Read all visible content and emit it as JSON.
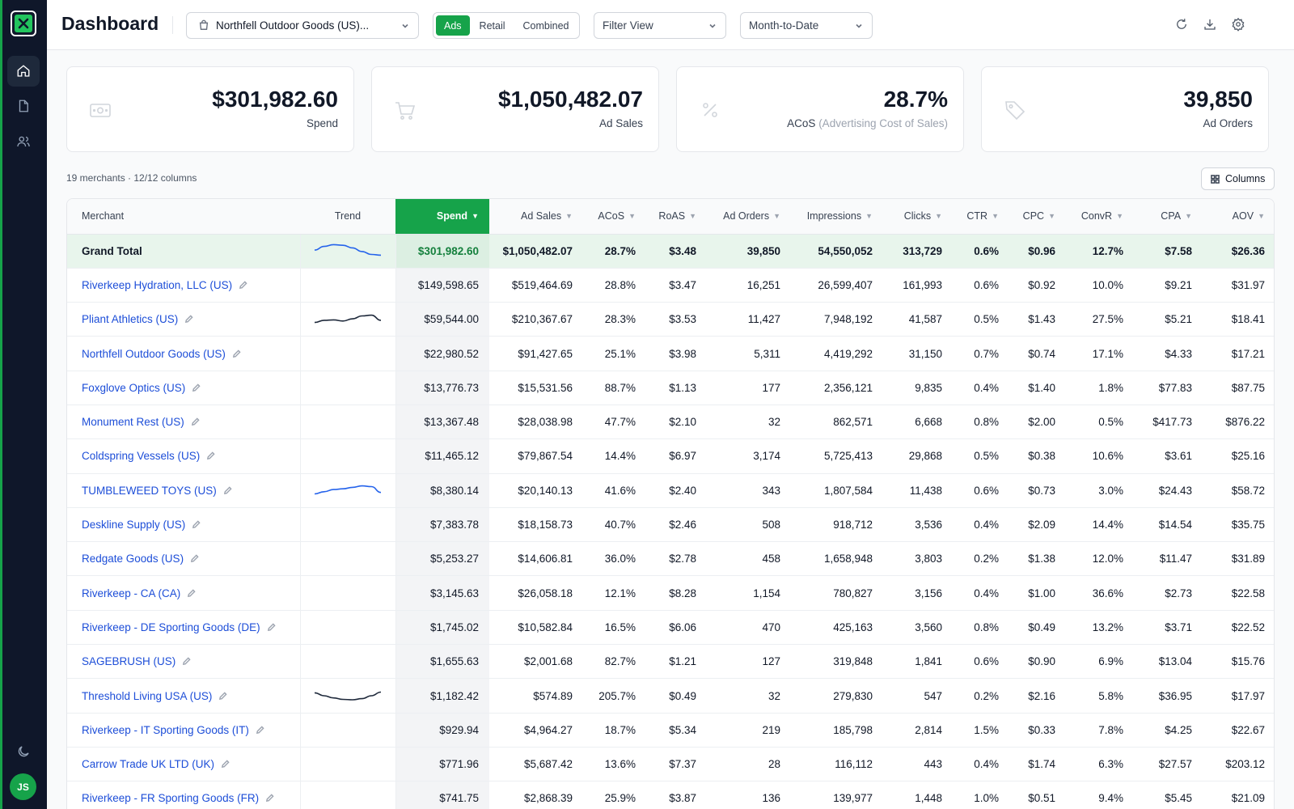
{
  "app": {
    "title": "Dashboard",
    "avatar_initials": "JS"
  },
  "topbar": {
    "store_select": "Northfell Outdoor Goods (US)...",
    "segments": [
      "Ads",
      "Retail",
      "Combined"
    ],
    "active_segment": "Ads",
    "filter_view": "Filter View",
    "date_range": "Month-to-Date"
  },
  "kpis": {
    "spend": {
      "value": "$301,982.60",
      "label": "Spend"
    },
    "ad_sales": {
      "value": "$1,050,482.07",
      "label": "Ad Sales"
    },
    "acos": {
      "value": "28.7%",
      "label": "ACoS",
      "label_detail": "(Advertising Cost of Sales)"
    },
    "ad_orders": {
      "value": "39,850",
      "label": "Ad Orders"
    }
  },
  "table_meta": "19 merchants · 12/12 columns",
  "columns_button": "Columns",
  "table": {
    "columns": [
      "Merchant",
      "Trend",
      "Spend",
      "Ad Sales",
      "ACoS",
      "RoAS",
      "Ad Orders",
      "Impressions",
      "Clicks",
      "CTR",
      "CPC",
      "ConvR",
      "CPA",
      "AOV"
    ],
    "sorted_column": "Spend",
    "total": {
      "merchant": "Grand Total",
      "values": [
        "$301,982.60",
        "$1,050,482.07",
        "28.7%",
        "$3.48",
        "39,850",
        "54,550,052",
        "313,729",
        "0.6%",
        "$0.96",
        "12.7%",
        "$7.58",
        "$26.36"
      ],
      "trend": [
        0.45,
        0.2,
        0.08,
        0.12,
        0.3,
        0.55,
        0.75,
        0.8
      ]
    },
    "rows": [
      {
        "merchant": "Riverkeep Hydration, LLC (US)",
        "values": [
          "$149,598.65",
          "$519,464.69",
          "28.8%",
          "$3.47",
          "16,251",
          "26,599,407",
          "161,993",
          "0.6%",
          "$0.92",
          "10.0%",
          "$9.21",
          "$31.97"
        ],
        "trend": null
      },
      {
        "merchant": "Pliant Athletics (US)",
        "values": [
          "$59,544.00",
          "$210,367.67",
          "28.3%",
          "$3.53",
          "11,427",
          "7,948,192",
          "41,587",
          "0.5%",
          "$1.43",
          "27.5%",
          "$5.21",
          "$18.41"
        ],
        "trend": [
          0.7,
          0.55,
          0.52,
          0.6,
          0.45,
          0.25,
          0.2,
          0.55
        ]
      },
      {
        "merchant": "Northfell Outdoor Goods (US)",
        "values": [
          "$22,980.52",
          "$91,427.65",
          "25.1%",
          "$3.98",
          "5,311",
          "4,419,292",
          "31,150",
          "0.7%",
          "$0.74",
          "17.1%",
          "$4.33",
          "$17.21"
        ],
        "trend": null
      },
      {
        "merchant": "Foxglove Optics (US)",
        "values": [
          "$13,776.73",
          "$15,531.56",
          "88.7%",
          "$1.13",
          "177",
          "2,356,121",
          "9,835",
          "0.4%",
          "$1.40",
          "1.8%",
          "$77.83",
          "$87.75"
        ],
        "trend": null
      },
      {
        "merchant": "Monument Rest (US)",
        "values": [
          "$13,367.48",
          "$28,038.98",
          "47.7%",
          "$2.10",
          "32",
          "862,571",
          "6,668",
          "0.8%",
          "$2.00",
          "0.5%",
          "$417.73",
          "$876.22"
        ],
        "trend": null
      },
      {
        "merchant": "Coldspring Vessels (US)",
        "values": [
          "$11,465.12",
          "$79,867.54",
          "14.4%",
          "$6.97",
          "3,174",
          "5,725,413",
          "29,868",
          "0.5%",
          "$0.38",
          "10.6%",
          "$3.61",
          "$25.16"
        ],
        "trend": null
      },
      {
        "merchant": "TUMBLEWEED TOYS (US)",
        "values": [
          "$8,380.14",
          "$20,140.13",
          "41.6%",
          "$2.40",
          "343",
          "1,807,584",
          "11,438",
          "0.6%",
          "$0.73",
          "3.0%",
          "$24.43",
          "$58.72"
        ],
        "trend": [
          0.75,
          0.6,
          0.45,
          0.4,
          0.3,
          0.2,
          0.25,
          0.65
        ]
      },
      {
        "merchant": "Deskline Supply (US)",
        "values": [
          "$7,383.78",
          "$18,158.73",
          "40.7%",
          "$2.46",
          "508",
          "918,712",
          "3,536",
          "0.4%",
          "$2.09",
          "14.4%",
          "$14.54",
          "$35.75"
        ],
        "trend": null
      },
      {
        "merchant": "Redgate Goods (US)",
        "values": [
          "$5,253.27",
          "$14,606.81",
          "36.0%",
          "$2.78",
          "458",
          "1,658,948",
          "3,803",
          "0.2%",
          "$1.38",
          "12.0%",
          "$11.47",
          "$31.89"
        ],
        "trend": null
      },
      {
        "merchant": "Riverkeep - CA (CA)",
        "values": [
          "$3,145.63",
          "$26,058.18",
          "12.1%",
          "$8.28",
          "1,154",
          "780,827",
          "3,156",
          "0.4%",
          "$1.00",
          "36.6%",
          "$2.73",
          "$22.58"
        ],
        "trend": null
      },
      {
        "merchant": "Riverkeep - DE Sporting Goods (DE)",
        "values": [
          "$1,745.02",
          "$10,582.84",
          "16.5%",
          "$6.06",
          "470",
          "425,163",
          "3,560",
          "0.8%",
          "$0.49",
          "13.2%",
          "$3.71",
          "$22.52"
        ],
        "trend": null
      },
      {
        "merchant": "SAGEBRUSH (US)",
        "values": [
          "$1,655.63",
          "$2,001.68",
          "82.7%",
          "$1.21",
          "127",
          "319,848",
          "1,841",
          "0.6%",
          "$0.90",
          "6.9%",
          "$13.04",
          "$15.76"
        ],
        "trend": null
      },
      {
        "merchant": "Threshold Living USA (US)",
        "values": [
          "$1,182.42",
          "$574.89",
          "205.7%",
          "$0.49",
          "32",
          "279,830",
          "547",
          "0.2%",
          "$2.16",
          "5.8%",
          "$36.95",
          "$17.97"
        ],
        "trend": [
          0.3,
          0.5,
          0.65,
          0.75,
          0.78,
          0.7,
          0.5,
          0.25
        ]
      },
      {
        "merchant": "Riverkeep - IT Sporting Goods (IT)",
        "values": [
          "$929.94",
          "$4,964.27",
          "18.7%",
          "$5.34",
          "219",
          "185,798",
          "2,814",
          "1.5%",
          "$0.33",
          "7.8%",
          "$4.25",
          "$22.67"
        ],
        "trend": null
      },
      {
        "merchant": "Carrow Trade UK LTD (UK)",
        "values": [
          "$771.96",
          "$5,687.42",
          "13.6%",
          "$7.37",
          "28",
          "116,112",
          "443",
          "0.4%",
          "$1.74",
          "6.3%",
          "$27.57",
          "$203.12"
        ],
        "trend": null
      },
      {
        "merchant": "Riverkeep - FR Sporting Goods (FR)",
        "values": [
          "$741.75",
          "$2,868.39",
          "25.9%",
          "$3.87",
          "136",
          "139,977",
          "1,448",
          "1.0%",
          "$0.51",
          "9.4%",
          "$5.45",
          "$21.09"
        ],
        "trend": null
      }
    ]
  },
  "colors": {
    "accent": "#16a34a",
    "sidebar": "#0f172a",
    "link": "#1d4ed8",
    "trend_blue": "#2563eb",
    "trend_dark": "#1e293b"
  }
}
